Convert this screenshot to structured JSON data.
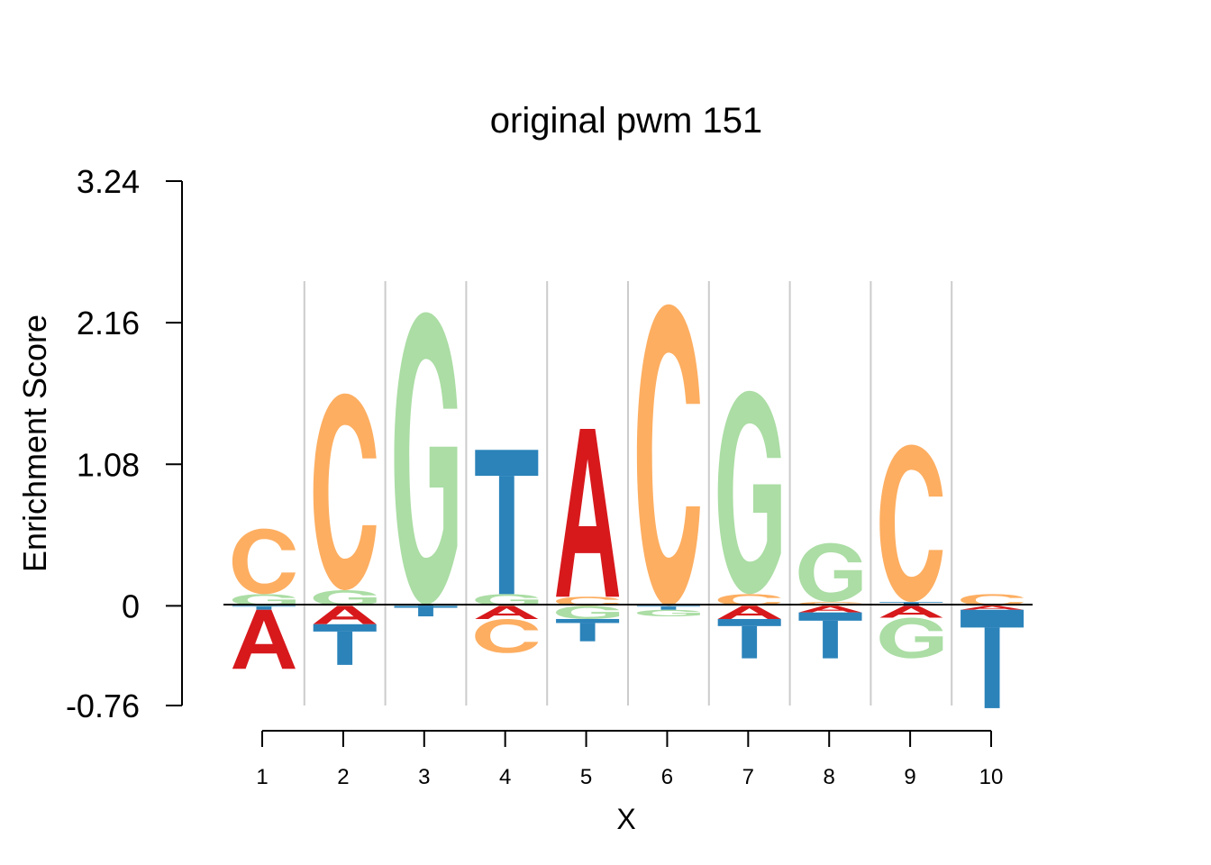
{
  "chart_data": {
    "type": "sequence-logo",
    "title": "original pwm 151",
    "xlabel": "X",
    "ylabel": "Enrichment Score",
    "yticks": [
      "3.24",
      "2.16",
      "1.08",
      "0",
      "-0.76"
    ],
    "ylim": [
      -0.76,
      3.24
    ],
    "positions": [
      "1",
      "2",
      "3",
      "4",
      "5",
      "6",
      "7",
      "8",
      "9",
      "10"
    ],
    "grid": "vertical separators",
    "colors": {
      "A": "#d7191c",
      "C": "#fdae61",
      "G": "#abdda4",
      "T": "#2b83ba"
    },
    "columns": [
      {
        "pos": 1,
        "positive": [
          [
            "G",
            0.09
          ],
          [
            "C",
            0.5
          ]
        ],
        "negative": [
          [
            "T",
            0.03
          ],
          [
            "A",
            0.45
          ]
        ]
      },
      {
        "pos": 2,
        "positive": [
          [
            "G",
            0.12
          ],
          [
            "C",
            1.5
          ]
        ],
        "negative": [
          [
            "A",
            0.14
          ],
          [
            "T",
            0.31
          ]
        ]
      },
      {
        "pos": 3,
        "positive": [
          [
            "T",
            0.01
          ],
          [
            "G",
            2.23
          ]
        ],
        "negative": [
          [
            "T",
            0.08
          ]
        ]
      },
      {
        "pos": 4,
        "positive": [
          [
            "G",
            0.09
          ],
          [
            "T",
            1.1
          ]
        ],
        "negative": [
          [
            "A",
            0.1
          ],
          [
            "C",
            0.26
          ]
        ]
      },
      {
        "pos": 5,
        "positive": [
          [
            "C",
            0.07
          ],
          [
            "A",
            1.28
          ]
        ],
        "negative": [
          [
            "G",
            0.1
          ],
          [
            "T",
            0.17
          ]
        ]
      },
      {
        "pos": 6,
        "positive": [
          [
            "C",
            2.3
          ]
        ],
        "negative": [
          [
            "T",
            0.03
          ],
          [
            "G",
            0.05
          ]
        ]
      },
      {
        "pos": 7,
        "positive": [
          [
            "C",
            0.09
          ],
          [
            "G",
            1.55
          ]
        ],
        "negative": [
          [
            "A",
            0.1
          ],
          [
            "T",
            0.3
          ]
        ]
      },
      {
        "pos": 8,
        "positive": [
          [
            "C",
            0.03
          ],
          [
            "G",
            0.45
          ]
        ],
        "negative": [
          [
            "A",
            0.05
          ],
          [
            "T",
            0.35
          ]
        ]
      },
      {
        "pos": 9,
        "positive": [
          [
            "T",
            0.03
          ],
          [
            "C",
            1.2
          ]
        ],
        "negative": [
          [
            "A",
            0.09
          ],
          [
            "G",
            0.31
          ]
        ]
      },
      {
        "pos": 10,
        "positive": [
          [
            "C",
            0.09
          ]
        ],
        "negative": [
          [
            "A",
            0.03
          ],
          [
            "T",
            0.75
          ]
        ]
      }
    ]
  }
}
